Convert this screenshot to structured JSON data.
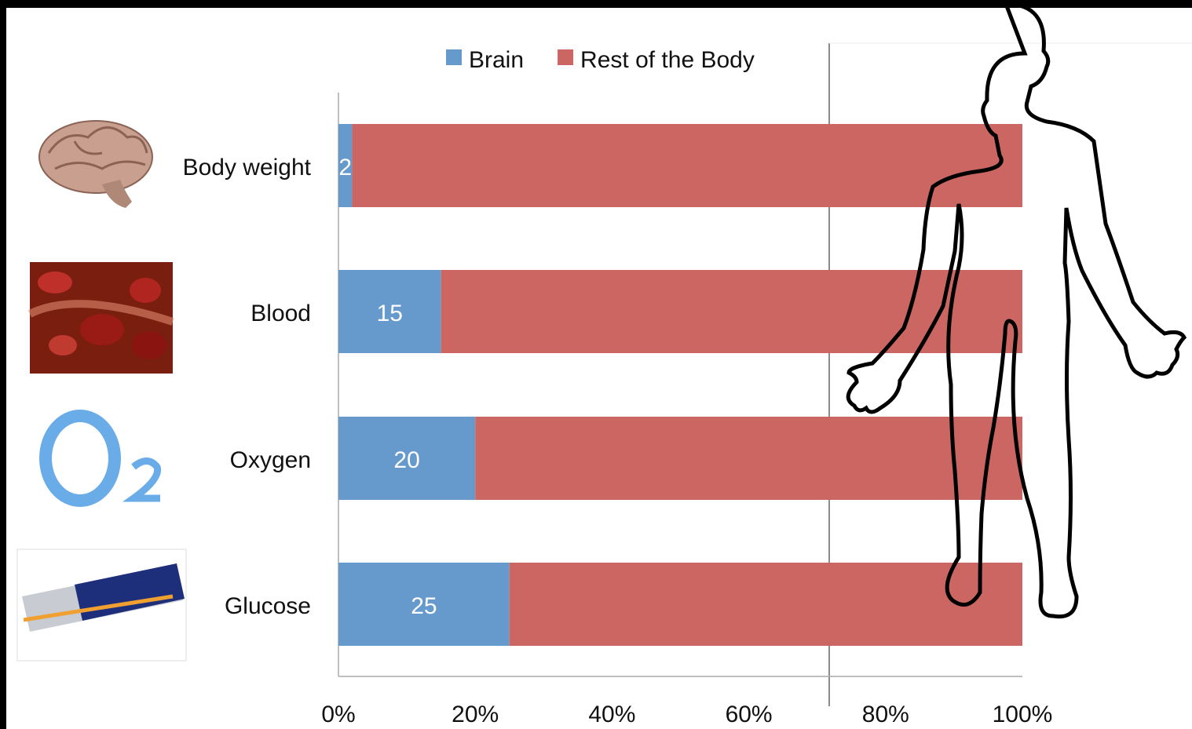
{
  "chart_data": {
    "type": "stacked_barh",
    "categories": [
      "Body weight",
      "Blood",
      "Oxygen",
      "Glucose"
    ],
    "series": [
      {
        "name": "Brain",
        "color": "#6699cc",
        "values": [
          2,
          15,
          20,
          25
        ]
      },
      {
        "name": "Rest of the Body",
        "color": "#cc6662",
        "values": [
          98,
          85,
          80,
          75
        ]
      }
    ],
    "xlim": [
      0,
      100
    ],
    "xticks": [
      {
        "value": 0,
        "label": "0%"
      },
      {
        "value": 20,
        "label": "20%"
      },
      {
        "value": 40,
        "label": "40%"
      },
      {
        "value": 60,
        "label": "60%"
      },
      {
        "value": 80,
        "label": "80%"
      },
      {
        "value": 100,
        "label": "100%"
      }
    ],
    "legend": "top",
    "data_labels": "Brain"
  }
}
